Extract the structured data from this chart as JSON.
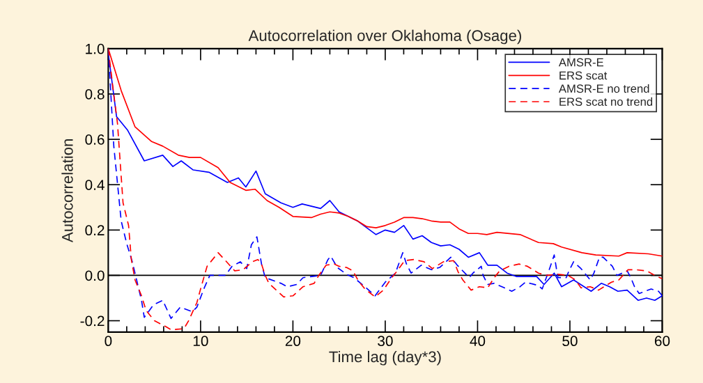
{
  "chart_data": {
    "type": "line",
    "title": "Autocorrelation over Oklahoma (Osage)",
    "xlabel": "Time lag (day*3)",
    "ylabel": "Autocorrelation",
    "xlim": [
      0,
      60
    ],
    "xticks": [
      0,
      10,
      20,
      30,
      40,
      50,
      60
    ],
    "ylim": [
      -0.25,
      1.0
    ],
    "yticks": [
      {
        "value": -0.2,
        "label": "-0.2"
      },
      {
        "value": 0,
        "label": "0.0"
      },
      {
        "value": 0.2,
        "label": "0.2"
      },
      {
        "value": 0.4,
        "label": "0.4"
      },
      {
        "value": 0.6,
        "label": "0.6"
      },
      {
        "value": 0.8,
        "label": "0.8"
      },
      {
        "value": 1.0,
        "label": "1.0"
      }
    ],
    "grid": false,
    "legend": "top right",
    "marker": "none",
    "ref_lines": [
      {
        "axis": "y",
        "value": 0,
        "color": "#000000",
        "line_style": "solid"
      }
    ],
    "series": [
      {
        "name": "AMSR-E",
        "color": "#0000ff",
        "line_style": "solid",
        "x": [
          0,
          0.9,
          2.1,
          3.9,
          5.9,
          7.0,
          7.9,
          9.2,
          10.9,
          12.9,
          14.1,
          14.9,
          16.0,
          17.0,
          18.7,
          20,
          21,
          22,
          23,
          24,
          25,
          26,
          27,
          28,
          29,
          30,
          31,
          32,
          33,
          34,
          35,
          36,
          37,
          38,
          39,
          40.2,
          41.1,
          42.1,
          43.2,
          44.2,
          46.4,
          47.2,
          48.3,
          49.1,
          50.4,
          52.3,
          53.4,
          54.3,
          55.2,
          56.2,
          57.4,
          58.3,
          59.2,
          60
        ],
        "values": [
          0.98,
          0.7,
          0.64,
          0.505,
          0.53,
          0.48,
          0.505,
          0.465,
          0.455,
          0.41,
          0.43,
          0.39,
          0.46,
          0.36,
          0.32,
          0.3,
          0.315,
          0.305,
          0.295,
          0.33,
          0.28,
          0.26,
          0.24,
          0.21,
          0.18,
          0.2,
          0.19,
          0.22,
          0.16,
          0.175,
          0.145,
          0.13,
          0.135,
          0.115,
          0.08,
          0.1,
          0.045,
          0.045,
          0.01,
          -0.005,
          -0.005,
          -0.04,
          0.01,
          -0.05,
          -0.02,
          -0.07,
          -0.035,
          -0.05,
          -0.07,
          -0.065,
          -0.11,
          -0.1,
          -0.11,
          -0.09
        ]
      },
      {
        "name": "ERS scat",
        "color": "#ff0000",
        "line_style": "solid",
        "x": [
          0,
          1.4,
          2.9,
          4.7,
          5.9,
          7.6,
          8.8,
          10,
          11.9,
          13.2,
          14.9,
          15.9,
          17.2,
          18.5,
          20,
          22,
          23,
          24,
          25,
          26,
          27,
          28,
          29,
          30,
          31,
          32,
          33,
          34,
          35,
          36,
          37,
          38,
          39,
          40,
          41,
          42.1,
          44.6,
          46.6,
          48.2,
          49.1,
          51.3,
          52.8,
          55.3,
          56.2,
          58.5,
          60
        ],
        "values": [
          1.0,
          0.815,
          0.655,
          0.59,
          0.57,
          0.53,
          0.52,
          0.52,
          0.475,
          0.41,
          0.375,
          0.38,
          0.33,
          0.3,
          0.26,
          0.255,
          0.27,
          0.28,
          0.275,
          0.26,
          0.24,
          0.215,
          0.21,
          0.22,
          0.235,
          0.255,
          0.255,
          0.25,
          0.24,
          0.235,
          0.235,
          0.205,
          0.185,
          0.185,
          0.18,
          0.19,
          0.18,
          0.145,
          0.14,
          0.125,
          0.1,
          0.09,
          0.085,
          0.1,
          0.095,
          0.085
        ]
      },
      {
        "name": "AMSR-E no trend",
        "color": "#0000ff",
        "line_style": "dashed",
        "x": [
          0,
          0.6,
          1.4,
          2.0,
          2.6,
          3.6,
          3.9,
          4.9,
          5.9,
          6.8,
          7.8,
          9.1,
          9.6,
          10.4,
          11,
          12.7,
          13.4,
          14.3,
          15,
          15.5,
          16.1,
          16.6,
          17,
          18.7,
          19.4,
          20.4,
          21.1,
          23,
          23.8,
          24.1,
          24.8,
          25.8,
          26.6,
          27.8,
          28.9,
          30,
          31.1,
          31.9,
          32.3,
          32.8,
          33.9,
          35,
          35.9,
          37.1,
          37.8,
          39.1,
          39.5,
          40.4,
          40.6,
          41.1,
          41.8,
          42.9,
          43.7,
          44.6,
          45.2,
          46.6,
          47,
          47.8,
          48.3,
          48.7,
          49.6,
          49.9,
          50.4,
          51.2,
          52.2,
          52.6,
          53.2,
          53.6,
          54.6,
          55.1,
          56.2,
          56.6,
          57,
          57.5,
          58.8,
          59.6,
          60
        ],
        "values": [
          1.0,
          0.57,
          0.24,
          0.14,
          0.06,
          -0.11,
          -0.185,
          -0.13,
          -0.11,
          -0.19,
          -0.14,
          -0.16,
          -0.14,
          -0.055,
          0.0,
          0.0,
          0.04,
          0.06,
          0.03,
          0.135,
          0.17,
          0.05,
          -0.01,
          -0.035,
          -0.05,
          -0.04,
          -0.01,
          0.0,
          0.07,
          0.085,
          0.035,
          0.005,
          -0.01,
          -0.05,
          -0.09,
          -0.03,
          0.01,
          0.1,
          0.05,
          0.01,
          0.045,
          0.025,
          0.035,
          0.08,
          0.045,
          -0.01,
          0.01,
          0.04,
          0.0,
          -0.04,
          -0.035,
          -0.055,
          -0.07,
          -0.05,
          -0.03,
          -0.045,
          -0.06,
          0.03,
          0.09,
          -0.01,
          -0.01,
          0.02,
          0.06,
          0.03,
          -0.02,
          0.01,
          0.08,
          0.08,
          0.04,
          0.0,
          0.02,
          -0.01,
          -0.05,
          -0.08,
          -0.06,
          -0.07,
          -0.09
        ]
      },
      {
        "name": "ERS scat no trend",
        "color": "#ff0000",
        "line_style": "dashed",
        "x": [
          0,
          0.5,
          1.0,
          1.6,
          2.2,
          2.5,
          2.9,
          3.6,
          4.1,
          5.0,
          6.2,
          6.8,
          8.2,
          8.7,
          9.6,
          10,
          10.7,
          11.9,
          12.7,
          13.7,
          14.6,
          15.6,
          16.2,
          16.6,
          17,
          17.4,
          19,
          20,
          21.1,
          22.3,
          22.8,
          23.6,
          24.5,
          25,
          25.8,
          26.5,
          27.1,
          27.8,
          28.9,
          29.8,
          30.7,
          31.3,
          32.1,
          33.1,
          34.2,
          35.1,
          36.3,
          37.4,
          37.9,
          38.4,
          39.3,
          40.2,
          41.1,
          41.8,
          42.4,
          43.4,
          44.5,
          45.4,
          46.6,
          47.5,
          48.7,
          49.8,
          50.6,
          51.2,
          52.2,
          53.1,
          54.5,
          55.3,
          56.3,
          57.1,
          58.3,
          59.2,
          60
        ],
        "values": [
          1.0,
          0.83,
          0.67,
          0.32,
          0.22,
          0.07,
          -0.02,
          -0.09,
          -0.155,
          -0.2,
          -0.225,
          -0.24,
          -0.235,
          -0.2,
          -0.12,
          -0.06,
          0.04,
          0.1,
          0.065,
          0.02,
          0.025,
          0.06,
          0.07,
          0.05,
          0.0,
          -0.035,
          -0.095,
          -0.09,
          -0.05,
          -0.035,
          0.0,
          0.045,
          0.05,
          0.04,
          0.035,
          0.02,
          -0.025,
          -0.06,
          -0.095,
          -0.065,
          -0.01,
          0.02,
          0.065,
          0.07,
          0.06,
          0.03,
          0.06,
          0.065,
          0.015,
          -0.02,
          -0.065,
          -0.05,
          -0.055,
          -0.01,
          0.02,
          0.04,
          0.05,
          0.04,
          0.01,
          0.0,
          0.005,
          0.0,
          -0.02,
          -0.055,
          -0.05,
          -0.065,
          -0.03,
          -0.02,
          0.025,
          0.025,
          0.02,
          0.0,
          -0.015
        ]
      }
    ]
  }
}
